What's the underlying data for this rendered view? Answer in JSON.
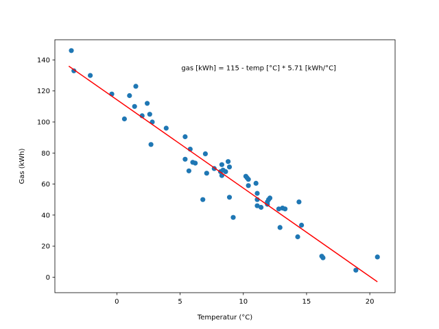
{
  "chart_data": {
    "type": "scatter",
    "title": "",
    "xlabel": "Temperatur (°C)",
    "ylabel": "Gas (kWh)",
    "xlim": [
      -4.9,
      22.0
    ],
    "ylim": [
      -10,
      153
    ],
    "xticks": [
      0,
      5,
      10,
      15,
      20
    ],
    "yticks": [
      0,
      20,
      40,
      60,
      80,
      100,
      120,
      140
    ],
    "grid": false,
    "annotation": {
      "text": "gas [kWh] = 115 - temp [°C] * 5.71 [kWh/°C]",
      "x": 5.1,
      "y": 135
    },
    "scatter_color": "#1f77b4",
    "line_color": "#ff0000",
    "fit_line": {
      "x": [
        -3.8,
        20.6
      ],
      "y": [
        136.0,
        -3.0
      ]
    },
    "points": [
      [
        -3.6,
        146
      ],
      [
        -3.4,
        133
      ],
      [
        -2.1,
        130
      ],
      [
        -0.4,
        118
      ],
      [
        0.6,
        102
      ],
      [
        1.0,
        117
      ],
      [
        1.4,
        110
      ],
      [
        1.5,
        123
      ],
      [
        2.0,
        104
      ],
      [
        2.4,
        112
      ],
      [
        2.6,
        105
      ],
      [
        2.8,
        100
      ],
      [
        2.7,
        85.5
      ],
      [
        3.9,
        96
      ],
      [
        5.4,
        90.5
      ],
      [
        5.4,
        76
      ],
      [
        5.7,
        68.5
      ],
      [
        5.8,
        82.5
      ],
      [
        6.0,
        74
      ],
      [
        6.2,
        73.5
      ],
      [
        6.8,
        50
      ],
      [
        7.0,
        79.5
      ],
      [
        7.1,
        67
      ],
      [
        7.7,
        70
      ],
      [
        8.2,
        68
      ],
      [
        8.3,
        72.5
      ],
      [
        8.3,
        65.5
      ],
      [
        8.4,
        69
      ],
      [
        8.6,
        68
      ],
      [
        8.8,
        74.5
      ],
      [
        8.9,
        71
      ],
      [
        8.9,
        51.5
      ],
      [
        9.2,
        38.5
      ],
      [
        10.2,
        65
      ],
      [
        10.3,
        64
      ],
      [
        10.4,
        63
      ],
      [
        10.4,
        59
      ],
      [
        11.0,
        60.5
      ],
      [
        11.1,
        54
      ],
      [
        11.1,
        50
      ],
      [
        11.1,
        46
      ],
      [
        11.4,
        45
      ],
      [
        11.9,
        47
      ],
      [
        11.9,
        48.5
      ],
      [
        12.0,
        50
      ],
      [
        12.1,
        51
      ],
      [
        12.8,
        44
      ],
      [
        12.9,
        32
      ],
      [
        13.1,
        44.5
      ],
      [
        13.3,
        44
      ],
      [
        14.3,
        26
      ],
      [
        14.4,
        48.5
      ],
      [
        14.6,
        33.5
      ],
      [
        16.2,
        13.5
      ],
      [
        16.3,
        12.5
      ],
      [
        18.9,
        4.5
      ],
      [
        20.6,
        13
      ]
    ]
  }
}
